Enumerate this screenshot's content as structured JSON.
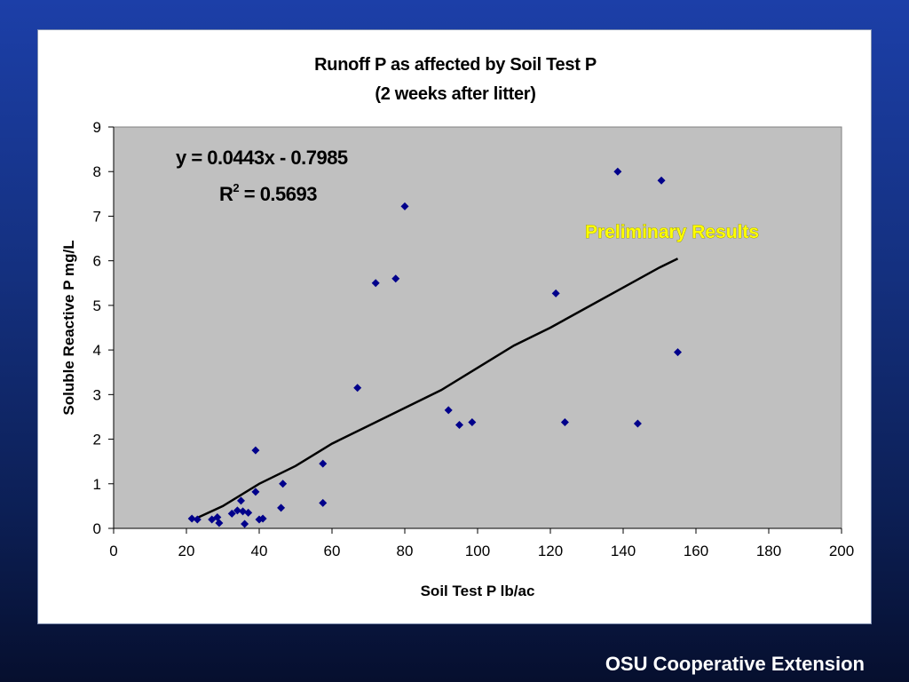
{
  "footer": "OSU Cooperative Extension",
  "chart_data": {
    "type": "scatter",
    "title": "Runoff P as affected by Soil Test P",
    "subtitle": "(2 weeks after litter)",
    "xlabel": "Soil Test P lb/ac",
    "ylabel": "Soluble Reactive P mg/L",
    "xlim": [
      0,
      200
    ],
    "ylim": [
      0,
      9
    ],
    "xticks": [
      0,
      20,
      40,
      60,
      80,
      100,
      120,
      140,
      160,
      180,
      200
    ],
    "yticks": [
      0,
      1,
      2,
      3,
      4,
      5,
      6,
      7,
      8,
      9
    ],
    "grid": false,
    "legend": "none",
    "marker_color": "#00008b",
    "plot_background": "#c0c0c0",
    "points": [
      [
        21.5,
        0.22
      ],
      [
        23,
        0.2
      ],
      [
        27,
        0.2
      ],
      [
        28.5,
        0.25
      ],
      [
        29,
        0.12
      ],
      [
        32.5,
        0.33
      ],
      [
        34,
        0.4
      ],
      [
        35,
        0.62
      ],
      [
        35.5,
        0.38
      ],
      [
        36,
        0.1
      ],
      [
        37,
        0.35
      ],
      [
        39,
        0.82
      ],
      [
        39,
        1.75
      ],
      [
        40,
        0.2
      ],
      [
        41,
        0.22
      ],
      [
        46,
        0.46
      ],
      [
        46.5,
        1.0
      ],
      [
        57.5,
        0.57
      ],
      [
        57.5,
        1.45
      ],
      [
        67,
        3.15
      ],
      [
        72,
        5.5
      ],
      [
        77.5,
        5.6
      ],
      [
        80,
        7.22
      ],
      [
        92,
        2.65
      ],
      [
        95,
        2.32
      ],
      [
        98.5,
        2.38
      ],
      [
        121.5,
        5.27
      ],
      [
        124,
        2.38
      ],
      [
        138.5,
        8.0
      ],
      [
        144,
        2.35
      ],
      [
        150.5,
        7.8
      ],
      [
        155,
        3.95
      ]
    ],
    "trendline": {
      "slope": 0.0443,
      "intercept": -0.7985,
      "x_range": [
        22,
        155
      ],
      "curve": [
        [
          22,
          0.2
        ],
        [
          30,
          0.5
        ],
        [
          40,
          1.0
        ],
        [
          50,
          1.4
        ],
        [
          60,
          1.9
        ],
        [
          70,
          2.3
        ],
        [
          80,
          2.7
        ],
        [
          90,
          3.1
        ],
        [
          100,
          3.6
        ],
        [
          110,
          4.1
        ],
        [
          120,
          4.5
        ],
        [
          130,
          4.95
        ],
        [
          140,
          5.4
        ],
        [
          150,
          5.85
        ],
        [
          155,
          6.05
        ]
      ],
      "color": "#000000"
    },
    "equation": "y = 0.0443x - 0.7985",
    "r2_label": "R",
    "r2_superscript": "2",
    "r2_value": " = 0.5693",
    "annotation": "Preliminary Results"
  }
}
